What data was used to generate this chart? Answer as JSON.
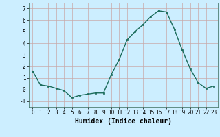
{
  "x": [
    0,
    1,
    2,
    3,
    4,
    5,
    6,
    7,
    8,
    9,
    10,
    11,
    12,
    13,
    14,
    15,
    16,
    17,
    18,
    19,
    20,
    21,
    22,
    23
  ],
  "y": [
    1.6,
    0.4,
    0.3,
    0.1,
    -0.1,
    -0.7,
    -0.5,
    -0.4,
    -0.3,
    -0.3,
    1.3,
    2.6,
    4.3,
    5.0,
    5.6,
    6.3,
    6.8,
    6.7,
    5.2,
    3.4,
    1.8,
    0.6,
    0.1,
    0.3
  ],
  "line_color": "#1a6b5a",
  "marker": "s",
  "markersize": 2.0,
  "linewidth": 1.0,
  "xlabel": "Humidex (Indice chaleur)",
  "xlabel_fontsize": 7,
  "xlim": [
    -0.5,
    23.5
  ],
  "ylim": [
    -1.5,
    7.5
  ],
  "yticks": [
    -1,
    0,
    1,
    2,
    3,
    4,
    5,
    6,
    7
  ],
  "xticks": [
    0,
    1,
    2,
    3,
    4,
    5,
    6,
    7,
    8,
    9,
    10,
    11,
    12,
    13,
    14,
    15,
    16,
    17,
    18,
    19,
    20,
    21,
    22,
    23
  ],
  "bg_color": "#cceeff",
  "grid_color_major": "#c8a8a8",
  "grid_color_minor": "#c8a8a8",
  "tick_fontsize": 5.5
}
